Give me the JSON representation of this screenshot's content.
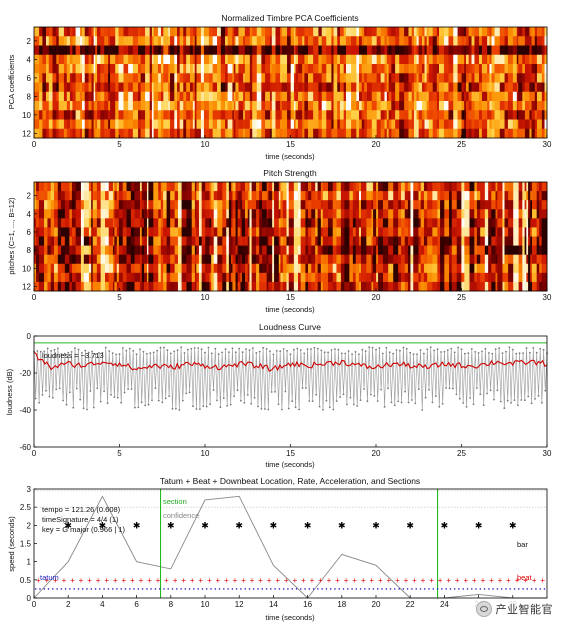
{
  "chart_data": [
    {
      "type": "heatmap",
      "title": "Normalized Timbre PCA Coefficients",
      "xlabel": "time (seconds)",
      "ylabel": "PCA coefficients",
      "xlim": [
        0,
        30
      ],
      "x_ticks": [
        "0",
        "5",
        "10",
        "15",
        "20",
        "25",
        "30"
      ],
      "y_ticks": [
        "2",
        "4",
        "6",
        "8",
        "10",
        "12"
      ],
      "rows": 12,
      "segments": 150,
      "colormap": [
        "#2a0000",
        "#7a0000",
        "#c81400",
        "#ee4400",
        "#fb8c00",
        "#ffcf40",
        "#ffffff"
      ],
      "row_means": [
        0.55,
        0.62,
        0.12,
        0.66,
        0.6,
        0.55,
        0.45,
        0.6,
        0.66,
        0.5,
        0.62,
        0.5
      ]
    },
    {
      "type": "heatmap",
      "title": "Pitch Strength",
      "xlabel": "time (seconds)",
      "ylabel": "pitches (C=1, ..., B=12)",
      "xlim": [
        0,
        30
      ],
      "x_ticks": [
        "0",
        "5",
        "10",
        "15",
        "20",
        "25",
        "30"
      ],
      "y_ticks": [
        "2",
        "4",
        "6",
        "8",
        "10",
        "12"
      ],
      "rows": 12,
      "segments": 150,
      "colormap": [
        "#2a0000",
        "#7a0000",
        "#c81400",
        "#ee4400",
        "#fb8c00",
        "#ffcf40",
        "#ffffff"
      ],
      "row_means": [
        0.45,
        0.5,
        0.4,
        0.35,
        0.3,
        0.38,
        0.3,
        0.28,
        0.35,
        0.45,
        0.4,
        0.35
      ]
    },
    {
      "type": "line",
      "title": "Loudness Curve",
      "xlabel": "time (seconds)",
      "ylabel": "loudness (dB)",
      "xlim": [
        0,
        30
      ],
      "ylim": [
        -60,
        0
      ],
      "x_ticks": [
        "0",
        "5",
        "10",
        "15",
        "20",
        "25",
        "30"
      ],
      "y_ticks": [
        "0",
        "-20",
        "-40",
        "-60"
      ],
      "annotation": "loudness = −3.713",
      "overall_loudness": -3.713,
      "series": [
        {
          "x": [
            0,
            1,
            2,
            3,
            4,
            5,
            6,
            7,
            8,
            9,
            10,
            11,
            12,
            13,
            14,
            15,
            16,
            17,
            18,
            19,
            20,
            21,
            22,
            23,
            24,
            25,
            26,
            27,
            28,
            29,
            30
          ],
          "values": [
            -10,
            -17,
            -15,
            -16,
            -14,
            -15,
            -18,
            -16,
            -17,
            -15,
            -16,
            -17,
            -15,
            -16,
            -18,
            -15,
            -16,
            -15,
            -14,
            -16,
            -17,
            -15,
            -16,
            -17,
            -15,
            -16,
            -16,
            -14,
            -15,
            -14,
            -15
          ]
        }
      ],
      "segment_peak_db": [
        -6,
        -10
      ],
      "segment_trough_db": [
        -28,
        -40
      ],
      "colors": {
        "envelope": "#d00000",
        "segments": "#999999",
        "overall": "#22bb22"
      }
    },
    {
      "type": "scatter",
      "title": "Tatum + Beat + Downbeat Location, Rate, Acceleration, and Sections",
      "xlabel": "time (seconds)",
      "ylabel": "speed (seconds)",
      "xlim": [
        0,
        30
      ],
      "ylim": [
        0,
        3
      ],
      "x_ticks": [
        "0",
        "2",
        "4",
        "6",
        "8",
        "10",
        "12",
        "14",
        "16",
        "18",
        "20",
        "22",
        "24",
        "26",
        "28"
      ],
      "y_ticks": [
        "0",
        "0.5",
        "1",
        "1.5",
        "2",
        "2.5",
        "3"
      ],
      "info": [
        "tempo = 121.26 (0.608)",
        "timeSignature = 4/4 (1)",
        "key = G major (0.966 | 1)"
      ],
      "labels": {
        "section": "section",
        "confidence": "confidence",
        "bar": "bar",
        "tatum": "tatum",
        "beat": "beat"
      },
      "bar_times": [
        2,
        4,
        6,
        8,
        10,
        12,
        14,
        16,
        18,
        20,
        22,
        24,
        26,
        28
      ],
      "bar_speed": 2.0,
      "beat_speed": 0.5,
      "tatum_speed": 0.25,
      "beat_period": 0.5,
      "tatum_period": 0.25,
      "section_times": [
        7.4,
        23.6
      ],
      "confidence_curve": {
        "x": [
          0,
          2,
          4,
          6,
          8,
          10,
          12,
          14,
          16,
          18,
          20,
          22,
          24,
          26,
          28,
          30
        ],
        "values": [
          0.0,
          1.0,
          2.8,
          1.0,
          0.8,
          2.7,
          2.8,
          0.9,
          0.0,
          1.2,
          0.9,
          0.0,
          0.0,
          0.1,
          0.0,
          0.0
        ]
      },
      "colors": {
        "section": "#22bb22",
        "confidence": "#888888",
        "bar": "#000000",
        "beat": "#e00000",
        "tatum": "#2020c0"
      }
    }
  ],
  "watermark": {
    "text": "产业智能官",
    "icon": "wechat-icon"
  }
}
